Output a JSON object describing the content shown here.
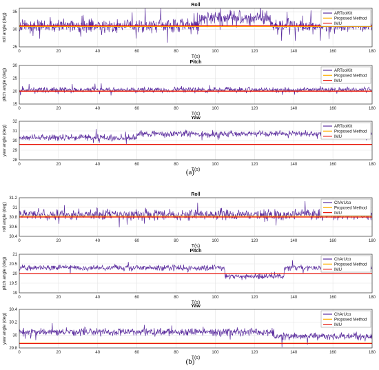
{
  "captions": [
    "(a)",
    "(b)"
  ],
  "colors": {
    "measured": "#5b2d9e",
    "proposed": "#ffb000",
    "imu": "#e8150a",
    "grid": "#e3e3e3",
    "axis": "#333333"
  },
  "chart_data": [
    {
      "type": "line",
      "title": "Roll",
      "xlabel": "T(s)",
      "ylabel": "roll angle (deg)",
      "xlim": [
        0,
        180
      ],
      "ylim": [
        25,
        36
      ],
      "xticks": [
        0,
        20,
        40,
        60,
        80,
        100,
        120,
        140,
        160,
        180
      ],
      "yticks": [
        25,
        30,
        35
      ],
      "grid": true,
      "legend_position": "top-right",
      "series": [
        {
          "name": "ARToolKit",
          "role": "measured",
          "base": 31,
          "amp": 1.5,
          "spikes": 0.12,
          "shifts": [
            {
              "from": 92,
              "to": 128,
              "value": 33
            }
          ],
          "noise": "gauss"
        },
        {
          "name": "Proposed Method",
          "role": "proposed",
          "constant": 30.8
        },
        {
          "name": "IMU",
          "role": "imu",
          "constant": 31.0
        }
      ]
    },
    {
      "type": "line",
      "title": "Pitch",
      "xlabel": "T(s)",
      "ylabel": "pitch angle (deg)",
      "xlim": [
        0,
        180
      ],
      "ylim": [
        15,
        30
      ],
      "xticks": [
        0,
        20,
        40,
        60,
        80,
        100,
        120,
        140,
        160,
        180
      ],
      "yticks": [
        15,
        20,
        25,
        30
      ],
      "grid": true,
      "legend_position": "top-right",
      "series": [
        {
          "name": "ARToolKit",
          "role": "measured",
          "base": 20.5,
          "amp": 0.8,
          "spikes": 0.06,
          "shifts": [],
          "noise": "gauss"
        },
        {
          "name": "Proposed Method",
          "role": "proposed",
          "constant": 20.1
        },
        {
          "name": "IMU",
          "role": "imu",
          "constant": 20.0
        }
      ]
    },
    {
      "type": "line",
      "title": "Yaw",
      "xlabel": "T(s)",
      "ylabel": "yaw angle (deg)",
      "xlim": [
        0,
        180
      ],
      "ylim": [
        28,
        32
      ],
      "xticks": [
        0,
        20,
        40,
        60,
        80,
        100,
        120,
        140,
        160,
        180
      ],
      "yticks": [
        28,
        29,
        30,
        31,
        32
      ],
      "grid": true,
      "legend_position": "top-right",
      "series": [
        {
          "name": "ARToolKit",
          "role": "measured",
          "base": 30.3,
          "amp": 0.25,
          "spikes": 0.06,
          "shifts": [
            {
              "from": 60,
              "to": 180,
              "value": 30.7
            }
          ],
          "noise": "gauss"
        },
        {
          "name": "Proposed Method",
          "role": "proposed",
          "constant": 29.6
        },
        {
          "name": "IMU",
          "role": "imu",
          "constant": 29.6
        }
      ]
    },
    {
      "type": "line",
      "title": "Roll",
      "xlabel": "T(s)",
      "ylabel": "roll angle (deg)",
      "xlim": [
        0,
        180
      ],
      "ylim": [
        30.4,
        31.2
      ],
      "xticks": [
        0,
        20,
        40,
        60,
        80,
        100,
        120,
        140,
        160,
        180
      ],
      "yticks": [
        30.4,
        30.6,
        30.8,
        31,
        31.2
      ],
      "grid": true,
      "legend_position": "top-right",
      "series": [
        {
          "name": "ChArUco",
          "role": "measured",
          "base": 30.85,
          "amp": 0.09,
          "spikes": 0.05,
          "shifts": [],
          "noise": "gauss"
        },
        {
          "name": "Proposed Method",
          "role": "proposed",
          "constant": 30.82
        },
        {
          "name": "IMU",
          "role": "imu",
          "constant": 30.8
        }
      ]
    },
    {
      "type": "line",
      "title": "Pitch",
      "xlabel": "T(s)",
      "ylabel": "pitch angle (deg)",
      "xlim": [
        0,
        180
      ],
      "ylim": [
        19,
        21
      ],
      "xticks": [
        0,
        20,
        40,
        60,
        80,
        100,
        120,
        140,
        160,
        180
      ],
      "yticks": [
        19,
        19.5,
        20,
        20.5,
        21
      ],
      "grid": true,
      "legend_position": "top-right",
      "series": [
        {
          "name": "ChArUco",
          "role": "measured",
          "base": 20.3,
          "amp": 0.12,
          "spikes": 0.03,
          "shifts": [
            {
              "from": 105,
              "to": 135,
              "value": 19.85
            }
          ],
          "noise": "gauss"
        },
        {
          "name": "Proposed Method",
          "role": "proposed",
          "constant": 20.0
        },
        {
          "name": "IMU",
          "role": "imu",
          "constant": 20.0
        }
      ]
    },
    {
      "type": "line",
      "title": "Yaw",
      "xlabel": "T(s)",
      "ylabel": "yaw angle (deg)",
      "xlim": [
        0,
        180
      ],
      "ylim": [
        29.8,
        30.4
      ],
      "xticks": [
        0,
        20,
        40,
        60,
        80,
        100,
        120,
        140,
        160,
        180
      ],
      "yticks": [
        29.8,
        30,
        30.2,
        30.4
      ],
      "grid": true,
      "legend_position": "top-right",
      "series": [
        {
          "name": "ChArUco",
          "role": "measured",
          "base": 30.05,
          "amp": 0.05,
          "spikes": 0.04,
          "shifts": [
            {
              "from": 130,
              "to": 180,
              "value": 29.98
            }
          ],
          "noise": "gauss"
        },
        {
          "name": "Proposed Method",
          "role": "proposed",
          "constant": 29.875
        },
        {
          "name": "IMU",
          "role": "imu",
          "constant": 29.87
        }
      ]
    }
  ]
}
